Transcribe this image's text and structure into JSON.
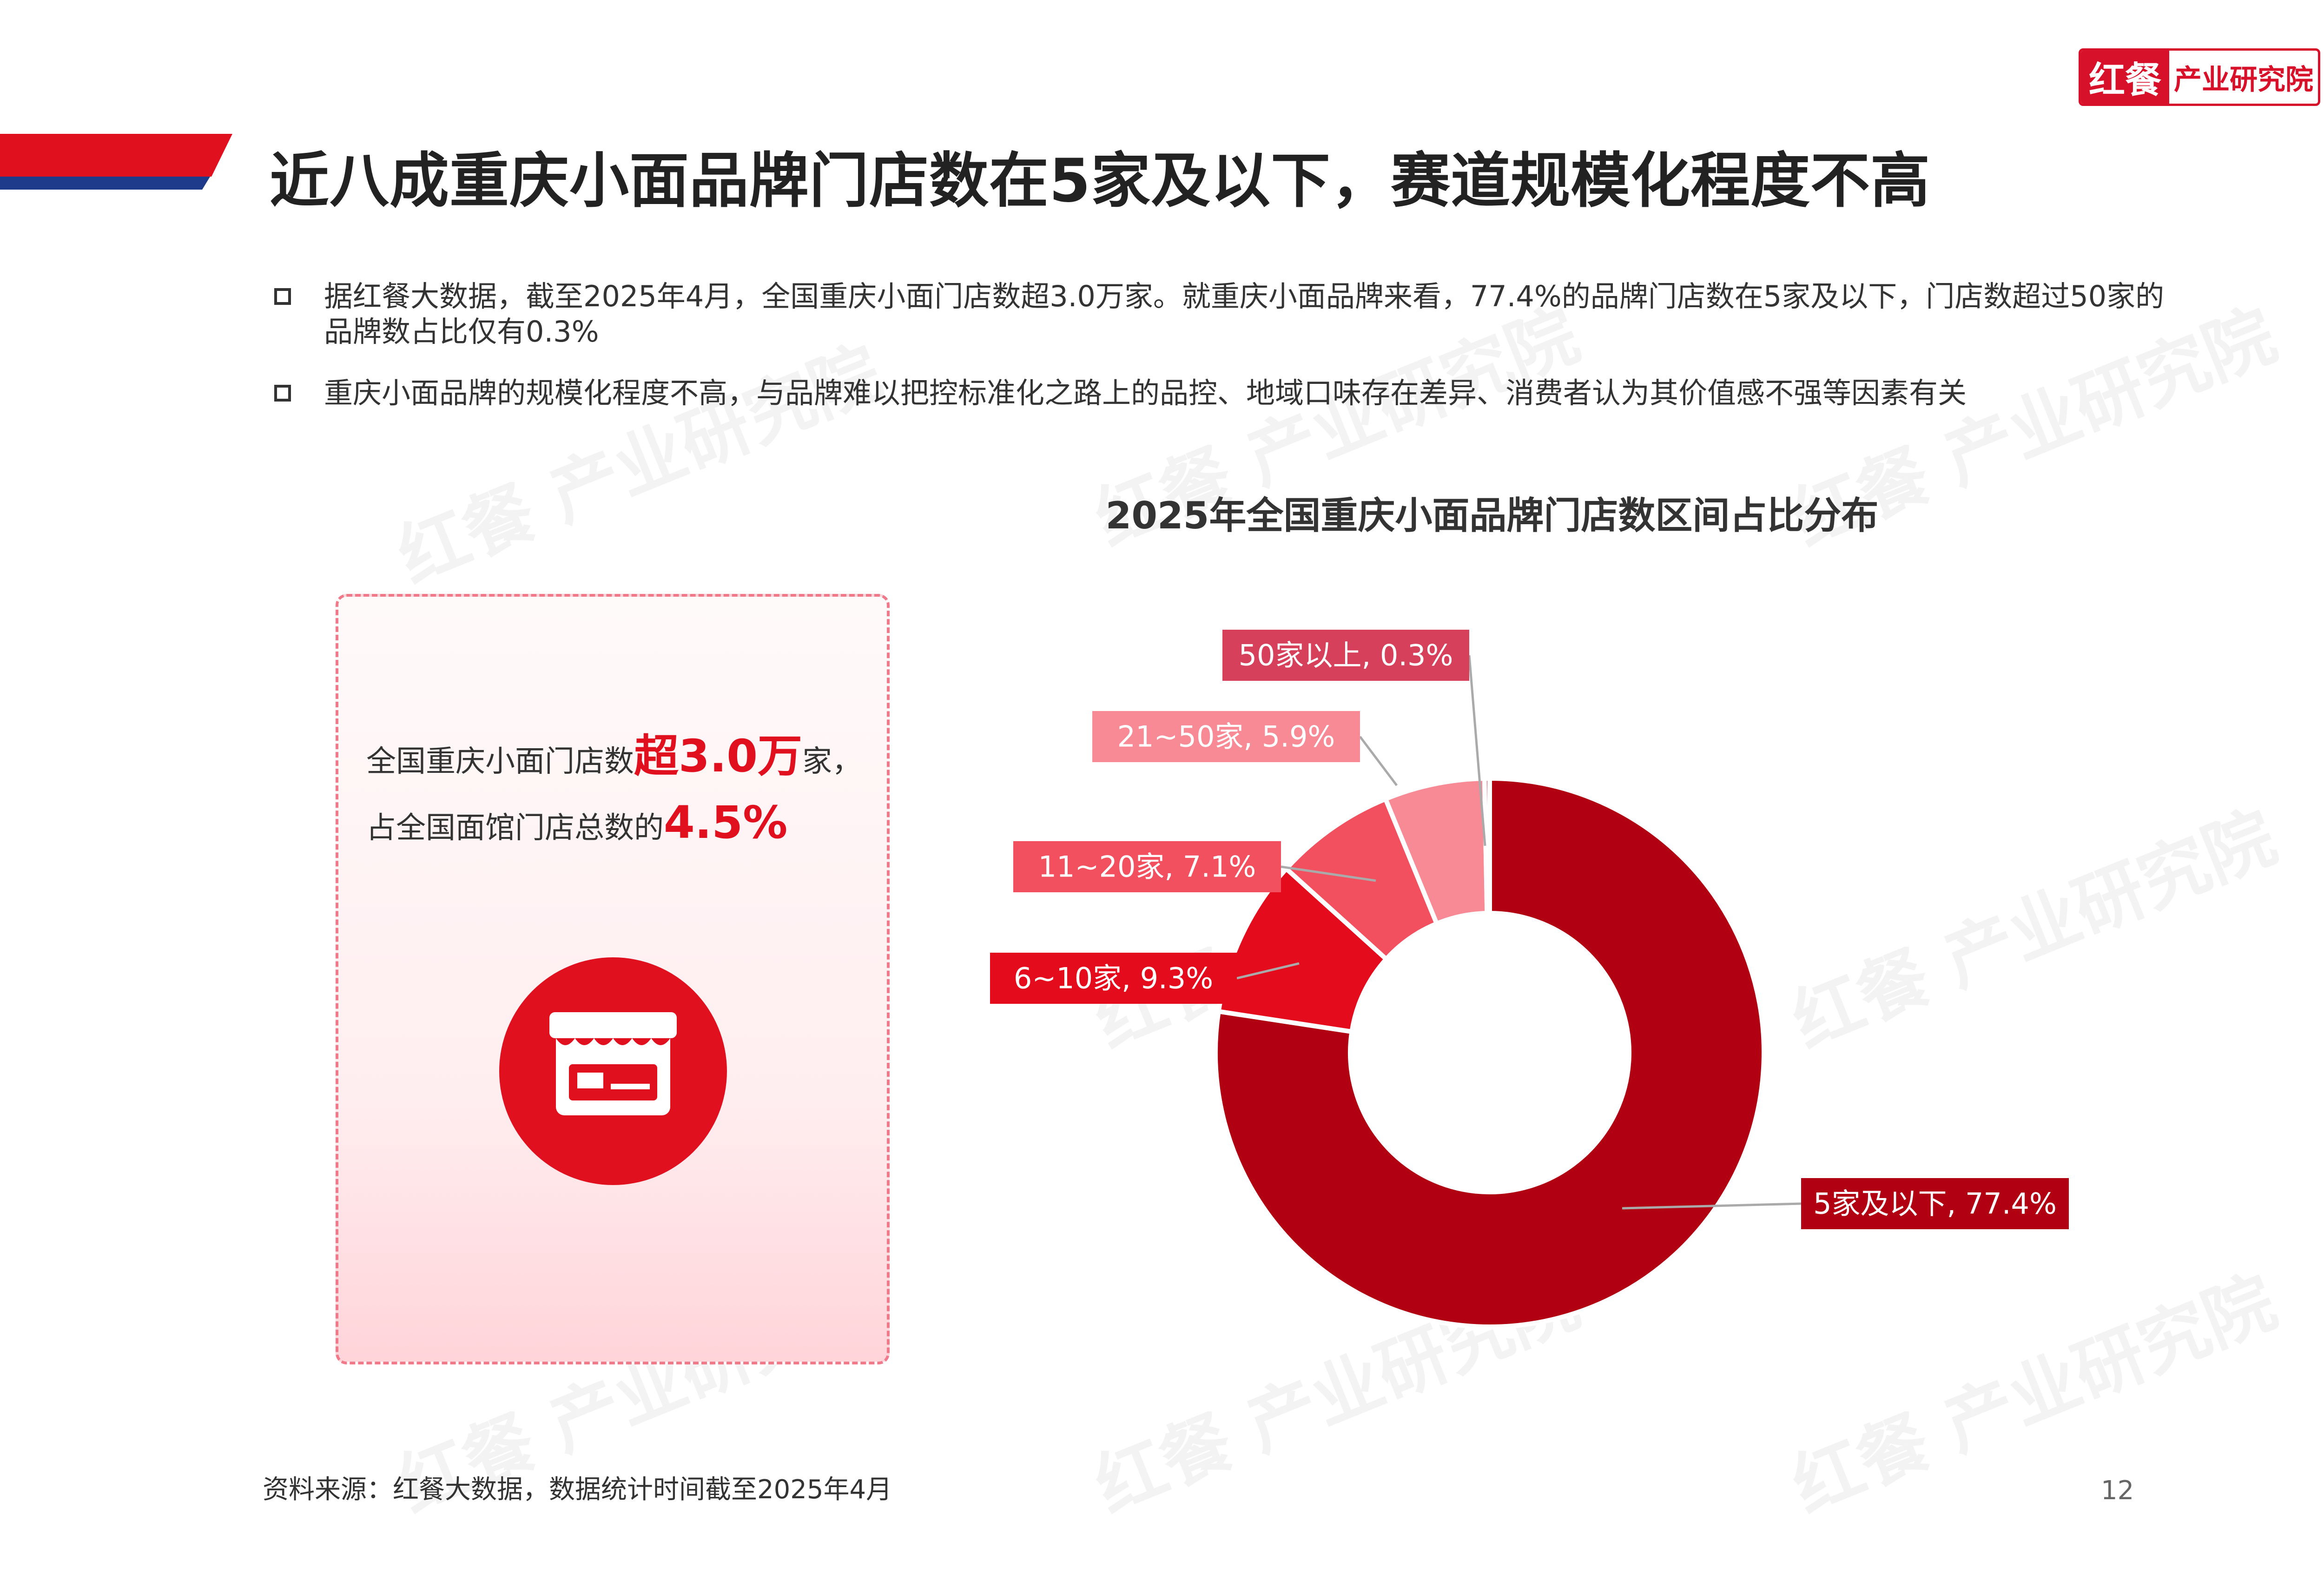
{
  "header": {
    "title": "近八成重庆小面品牌门店数在5家及以下，赛道规模化程度不高",
    "logo_left": "红餐",
    "logo_right": "产业研究院"
  },
  "bullets": [
    "据红餐大数据，截至2025年4月，全国重庆小面门店数超3.0万家。就重庆小面品牌来看，77.4%的品牌门店数在5家及以下，门店数超过50家的品牌数占比仅有0.3%",
    "重庆小面品牌的规模化程度不高，与品牌难以把控标准化之路上的品控、地域口味存在差异、消费者认为其价值感不强等因素有关"
  ],
  "card": {
    "line1_prefix": "全国重庆小面门店数",
    "line1_highlight": "超3.0万",
    "line1_suffix": "家，",
    "line2_prefix": "占全国面馆门店总数的",
    "line2_highlight": "4.5%",
    "icon": "storefront-icon",
    "accent_color": "#e0101f"
  },
  "watermark": "红餐 产业研究院",
  "chart_data": {
    "type": "pie",
    "style": "donut",
    "title": "2025年全国重庆小面品牌门店数区间占比分布",
    "categories": [
      "5家及以下",
      "6~10家",
      "11~20家",
      "21~50家",
      "50家以上"
    ],
    "values": [
      77.4,
      9.3,
      7.1,
      5.9,
      0.3
    ],
    "labels": [
      "5家及以下, 77.4%",
      "6~10家, 9.3%",
      "11~20家, 7.1%",
      "21~50家, 5.9%",
      "50家以上, 0.3%"
    ],
    "colors": [
      "#b00012",
      "#e30b1c",
      "#f2505f",
      "#f78a95",
      "#d6405a"
    ],
    "label_colors": [
      "#b00012",
      "#e30b1c",
      "#f2505f",
      "#f78a95",
      "#d6405a"
    ]
  },
  "footer": {
    "source": "资料来源：红餐大数据，数据统计时间截至2025年4月",
    "page_number": "12"
  }
}
